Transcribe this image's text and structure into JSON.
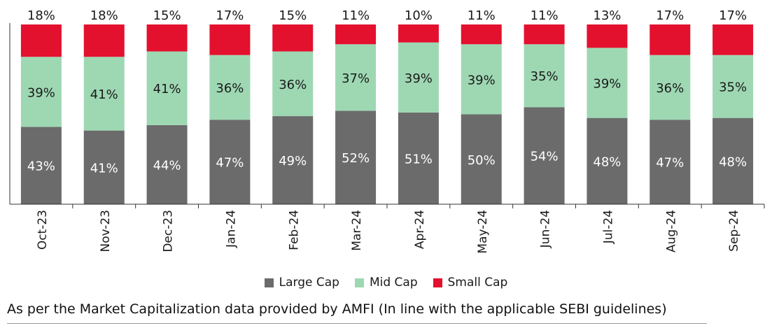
{
  "chart_data": {
    "type": "bar",
    "stacked": true,
    "percent": true,
    "categories": [
      "Oct-23",
      "Nov-23",
      "Dec-23",
      "Jan-24",
      "Feb-24",
      "Mar-24",
      "Apr-24",
      "May-24",
      "Jun-24",
      "Jul-24",
      "Aug-24",
      "Sep-24"
    ],
    "series": [
      {
        "name": "Large Cap",
        "color": "#6b6b6b",
        "values": [
          43,
          41,
          44,
          47,
          49,
          52,
          51,
          50,
          54,
          48,
          47,
          48
        ]
      },
      {
        "name": "Mid Cap",
        "color": "#9ed8b3",
        "values": [
          39,
          41,
          41,
          36,
          36,
          37,
          39,
          39,
          35,
          39,
          36,
          35
        ]
      },
      {
        "name": "Small Cap",
        "color": "#e3112e",
        "values": [
          18,
          18,
          15,
          17,
          15,
          11,
          10,
          11,
          11,
          13,
          17,
          17
        ]
      }
    ],
    "ylim": [
      0,
      100
    ],
    "legend_position": "bottom",
    "grid": false
  },
  "legend": {
    "items": [
      {
        "label": "Large Cap",
        "color": "#6b6b6b"
      },
      {
        "label": "Mid Cap",
        "color": "#9ed8b3"
      },
      {
        "label": "Small Cap",
        "color": "#e3112e"
      }
    ]
  },
  "footnote": "As per the Market Capitalization data provided by AMFI (In line with the applicable SEBI guidelines)"
}
